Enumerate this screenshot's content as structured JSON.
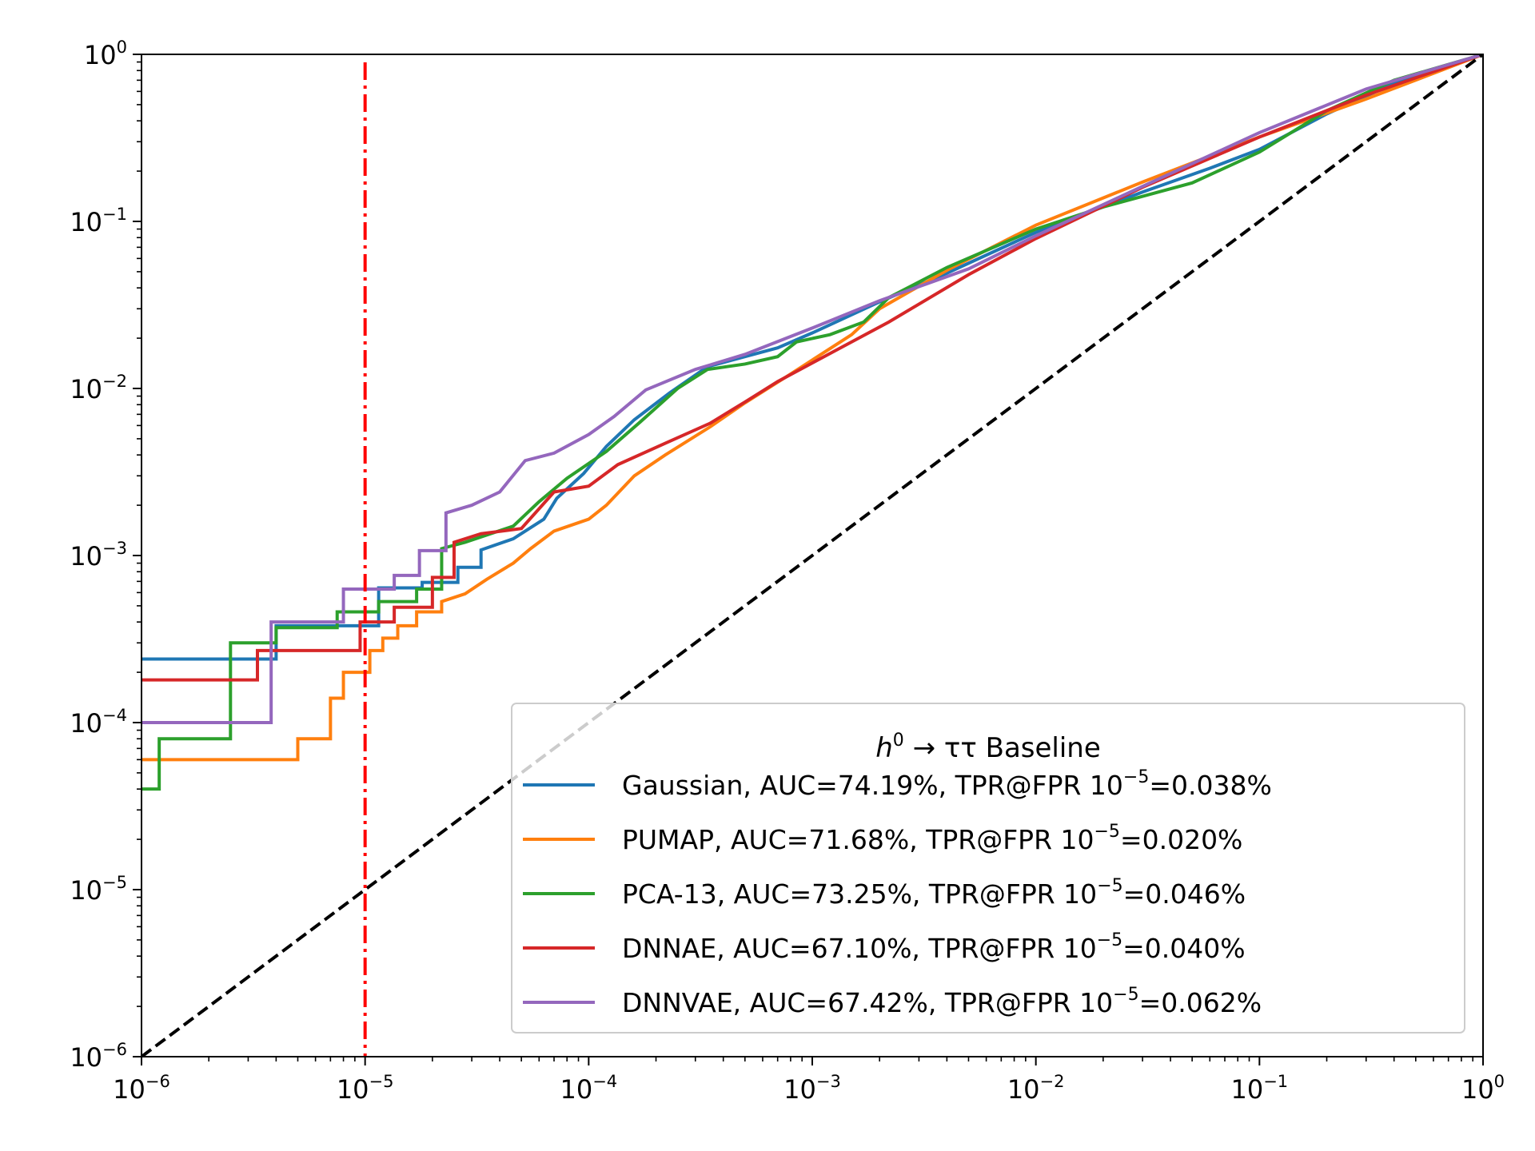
{
  "chart_data": {
    "type": "line",
    "x_scale": "log",
    "y_scale": "log",
    "xlim": [
      1e-06,
      1
    ],
    "ylim": [
      1e-06,
      1
    ],
    "grid": false,
    "legend_position": "bottom-right",
    "x_ticks": [
      {
        "base": "10",
        "exp": "−6",
        "value": 1e-06
      },
      {
        "base": "10",
        "exp": "−5",
        "value": 1e-05
      },
      {
        "base": "10",
        "exp": "−4",
        "value": 0.0001
      },
      {
        "base": "10",
        "exp": "−3",
        "value": 0.001
      },
      {
        "base": "10",
        "exp": "−2",
        "value": 0.01
      },
      {
        "base": "10",
        "exp": "−1",
        "value": 0.1
      },
      {
        "base": "10",
        "exp": "0",
        "value": 1
      }
    ],
    "y_ticks": [
      {
        "base": "10",
        "exp": "−6",
        "value": 1e-06
      },
      {
        "base": "10",
        "exp": "−5",
        "value": 1e-05
      },
      {
        "base": "10",
        "exp": "−4",
        "value": 0.0001
      },
      {
        "base": "10",
        "exp": "−3",
        "value": 0.001
      },
      {
        "base": "10",
        "exp": "−2",
        "value": 0.01
      },
      {
        "base": "10",
        "exp": "−1",
        "value": 0.1
      },
      {
        "base": "10",
        "exp": "0",
        "value": 1
      }
    ],
    "legend": {
      "title_italic": "h",
      "title_sup": "0",
      "title_rest": " → ττ Baseline",
      "entries": [
        {
          "pre": "Gaussian, AUC=74.19%, TPR@FPR 10",
          "sup": "−5",
          "post": "=0.038%"
        },
        {
          "pre": "PUMAP, AUC=71.68%, TPR@FPR 10",
          "sup": "−5",
          "post": "=0.020%"
        },
        {
          "pre": "PCA-13, AUC=73.25%, TPR@FPR 10",
          "sup": "−5",
          "post": "=0.046%"
        },
        {
          "pre": "DNNAE, AUC=67.10%, TPR@FPR 10",
          "sup": "−5",
          "post": "=0.040%"
        },
        {
          "pre": "DNNVAE, AUC=67.42%, TPR@FPR 10",
          "sup": "−5",
          "post": "=0.062%"
        }
      ]
    },
    "reference_lines": [
      {
        "kind": "diagonal",
        "color": "#000000",
        "style": "dashed",
        "points": [
          [
            1e-06,
            1e-06
          ],
          [
            1,
            1
          ]
        ]
      },
      {
        "kind": "vertical",
        "color": "#ff0000",
        "style": "dashdot",
        "x": 1e-05
      }
    ],
    "series": [
      {
        "color": "#1f77b4",
        "step": true,
        "points": [
          [
            1e-06,
            0.00024
          ],
          [
            4e-06,
            0.00024
          ],
          [
            4e-06,
            0.00038
          ],
          [
            1.15e-05,
            0.00038
          ],
          [
            1.15e-05,
            0.00064
          ],
          [
            1.8e-05,
            0.00064
          ],
          [
            1.8e-05,
            0.00069
          ],
          [
            2.6e-05,
            0.00069
          ],
          [
            2.6e-05,
            0.00085
          ],
          [
            3.3e-05,
            0.00085
          ],
          [
            3.3e-05,
            0.00108
          ],
          [
            4.6e-05,
            0.00126
          ],
          [
            6.3e-05,
            0.00165
          ],
          [
            7.2e-05,
            0.0022
          ],
          [
            9.5e-05,
            0.0031
          ],
          [
            0.00012,
            0.0045
          ],
          [
            0.00016,
            0.0065
          ],
          [
            0.00023,
            0.0094
          ],
          [
            0.00034,
            0.0135
          ],
          [
            0.0005,
            0.0155
          ],
          [
            0.0007,
            0.0175
          ],
          [
            0.001,
            0.0215
          ],
          [
            0.002,
            0.033
          ],
          [
            0.004,
            0.049
          ],
          [
            0.01,
            0.086
          ],
          [
            0.03,
            0.15
          ],
          [
            0.06,
            0.208
          ],
          [
            0.1,
            0.27
          ],
          [
            0.2,
            0.44
          ],
          [
            0.4,
            0.67
          ],
          [
            1,
            1
          ]
        ]
      },
      {
        "color": "#ff7f0e",
        "step": true,
        "points": [
          [
            1e-06,
            6e-05
          ],
          [
            5e-06,
            6e-05
          ],
          [
            5e-06,
            8e-05
          ],
          [
            7e-06,
            8e-05
          ],
          [
            7e-06,
            0.00014
          ],
          [
            8e-06,
            0.00014
          ],
          [
            8e-06,
            0.0002
          ],
          [
            1.05e-05,
            0.0002
          ],
          [
            1.05e-05,
            0.00027
          ],
          [
            1.2e-05,
            0.00027
          ],
          [
            1.2e-05,
            0.00032
          ],
          [
            1.4e-05,
            0.00032
          ],
          [
            1.4e-05,
            0.00038
          ],
          [
            1.7e-05,
            0.00038
          ],
          [
            1.7e-05,
            0.00046
          ],
          [
            2.2e-05,
            0.00046
          ],
          [
            2.2e-05,
            0.00053
          ],
          [
            2.8e-05,
            0.00059
          ],
          [
            3.5e-05,
            0.00072
          ],
          [
            4.6e-05,
            0.0009
          ],
          [
            5.5e-05,
            0.0011
          ],
          [
            7e-05,
            0.0014
          ],
          [
            0.0001,
            0.00165
          ],
          [
            0.00012,
            0.002
          ],
          [
            0.00016,
            0.003
          ],
          [
            0.00022,
            0.004
          ],
          [
            0.00035,
            0.0059
          ],
          [
            0.0005,
            0.0082
          ],
          [
            0.0008,
            0.0122
          ],
          [
            0.001,
            0.0148
          ],
          [
            0.0015,
            0.021
          ],
          [
            0.002,
            0.03
          ],
          [
            0.004,
            0.051
          ],
          [
            0.01,
            0.095
          ],
          [
            0.03,
            0.172
          ],
          [
            0.1,
            0.32
          ],
          [
            0.3,
            0.54
          ],
          [
            1,
            1
          ]
        ]
      },
      {
        "color": "#2ca02c",
        "step": true,
        "points": [
          [
            1e-06,
            4e-05
          ],
          [
            1.2e-06,
            4e-05
          ],
          [
            1.2e-06,
            8e-05
          ],
          [
            2.5e-06,
            8e-05
          ],
          [
            2.5e-06,
            0.0003
          ],
          [
            4e-06,
            0.0003
          ],
          [
            4e-06,
            0.00037
          ],
          [
            7.5e-06,
            0.00037
          ],
          [
            7.5e-06,
            0.00046
          ],
          [
            1.15e-05,
            0.00046
          ],
          [
            1.15e-05,
            0.00053
          ],
          [
            1.7e-05,
            0.00053
          ],
          [
            1.7e-05,
            0.00063
          ],
          [
            2.2e-05,
            0.00063
          ],
          [
            2.2e-05,
            0.0011
          ],
          [
            2.8e-05,
            0.0012
          ],
          [
            4.6e-05,
            0.0015
          ],
          [
            6e-05,
            0.0021
          ],
          [
            8e-05,
            0.0029
          ],
          [
            0.00012,
            0.0042
          ],
          [
            0.00017,
            0.0063
          ],
          [
            0.00025,
            0.01
          ],
          [
            0.00034,
            0.013
          ],
          [
            0.0005,
            0.014
          ],
          [
            0.0007,
            0.0155
          ],
          [
            0.00085,
            0.019
          ],
          [
            0.0012,
            0.021
          ],
          [
            0.0017,
            0.025
          ],
          [
            0.0022,
            0.035
          ],
          [
            0.004,
            0.053
          ],
          [
            0.01,
            0.09
          ],
          [
            0.02,
            0.122
          ],
          [
            0.05,
            0.17
          ],
          [
            0.1,
            0.26
          ],
          [
            0.2,
            0.46
          ],
          [
            0.4,
            0.7
          ],
          [
            1,
            1
          ]
        ]
      },
      {
        "color": "#d62728",
        "step": true,
        "points": [
          [
            1e-06,
            0.00018
          ],
          [
            3.3e-06,
            0.00018
          ],
          [
            3.3e-06,
            0.00027
          ],
          [
            9.5e-06,
            0.00027
          ],
          [
            9.5e-06,
            0.0004
          ],
          [
            1.35e-05,
            0.0004
          ],
          [
            1.35e-05,
            0.00049
          ],
          [
            2e-05,
            0.00049
          ],
          [
            2e-05,
            0.00074
          ],
          [
            2.5e-05,
            0.00074
          ],
          [
            2.5e-05,
            0.0012
          ],
          [
            3.3e-05,
            0.00135
          ],
          [
            5e-05,
            0.00145
          ],
          [
            7e-05,
            0.0024
          ],
          [
            0.0001,
            0.0026
          ],
          [
            0.000135,
            0.0035
          ],
          [
            0.00022,
            0.0047
          ],
          [
            0.00035,
            0.0062
          ],
          [
            0.0005,
            0.0083
          ],
          [
            0.0007,
            0.011
          ],
          [
            0.001,
            0.0142
          ],
          [
            0.0015,
            0.019
          ],
          [
            0.0022,
            0.025
          ],
          [
            0.005,
            0.048
          ],
          [
            0.01,
            0.079
          ],
          [
            0.03,
            0.16
          ],
          [
            0.1,
            0.32
          ],
          [
            0.3,
            0.57
          ],
          [
            1,
            1
          ]
        ]
      },
      {
        "color": "#9467bd",
        "step": true,
        "points": [
          [
            1e-06,
            0.0001
          ],
          [
            3.8e-06,
            0.0001
          ],
          [
            3.8e-06,
            0.0004
          ],
          [
            8e-06,
            0.0004
          ],
          [
            8e-06,
            0.00063
          ],
          [
            1.35e-05,
            0.00063
          ],
          [
            1.35e-05,
            0.00076
          ],
          [
            1.75e-05,
            0.00076
          ],
          [
            1.75e-05,
            0.00107
          ],
          [
            2.3e-05,
            0.00107
          ],
          [
            2.3e-05,
            0.0018
          ],
          [
            3e-05,
            0.002
          ],
          [
            4e-05,
            0.0024
          ],
          [
            5.2e-05,
            0.0037
          ],
          [
            7e-05,
            0.0041
          ],
          [
            0.0001,
            0.0053
          ],
          [
            0.00013,
            0.0068
          ],
          [
            0.00018,
            0.0098
          ],
          [
            0.0003,
            0.013
          ],
          [
            0.0005,
            0.016
          ],
          [
            0.001,
            0.023
          ],
          [
            0.002,
            0.0335
          ],
          [
            0.005,
            0.052
          ],
          [
            0.01,
            0.082
          ],
          [
            0.03,
            0.162
          ],
          [
            0.1,
            0.34
          ],
          [
            0.3,
            0.62
          ],
          [
            1,
            1
          ]
        ]
      }
    ]
  }
}
